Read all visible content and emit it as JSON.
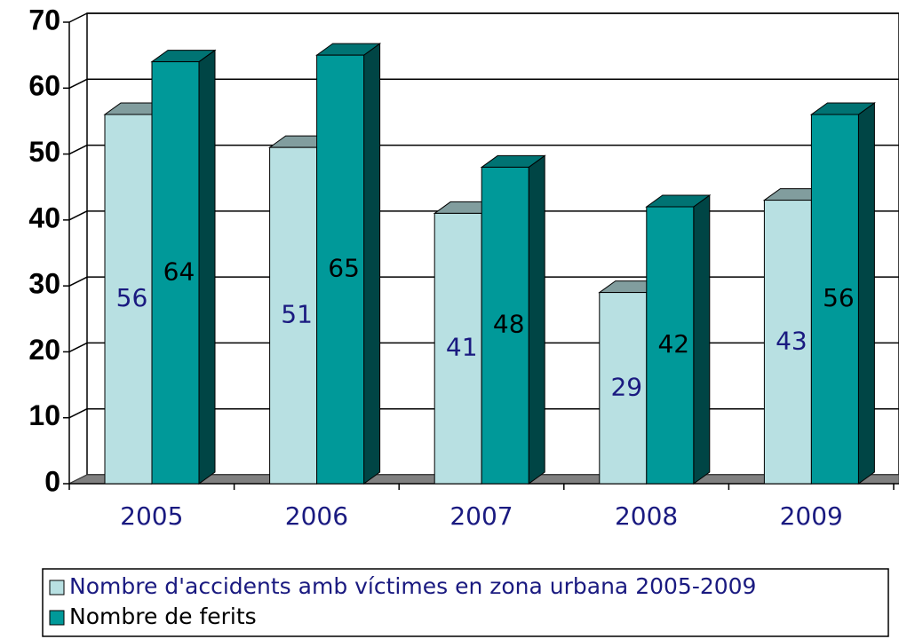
{
  "chart_data": {
    "type": "bar",
    "categories": [
      "2005",
      "2006",
      "2007",
      "2008",
      "2009"
    ],
    "series": [
      {
        "name": "Nombre d'accidents amb víctimes en zona urbana 2005-2009",
        "color": "#b8e0e2",
        "values": [
          56,
          51,
          41,
          29,
          43
        ]
      },
      {
        "name": "Nombre de ferits",
        "color": "#009999",
        "values": [
          64,
          65,
          48,
          42,
          56
        ]
      }
    ],
    "ylim": [
      0,
      70
    ],
    "yticks": [
      0,
      10,
      20,
      30,
      40,
      50,
      60,
      70
    ],
    "grid": true,
    "legend": "bottom"
  }
}
